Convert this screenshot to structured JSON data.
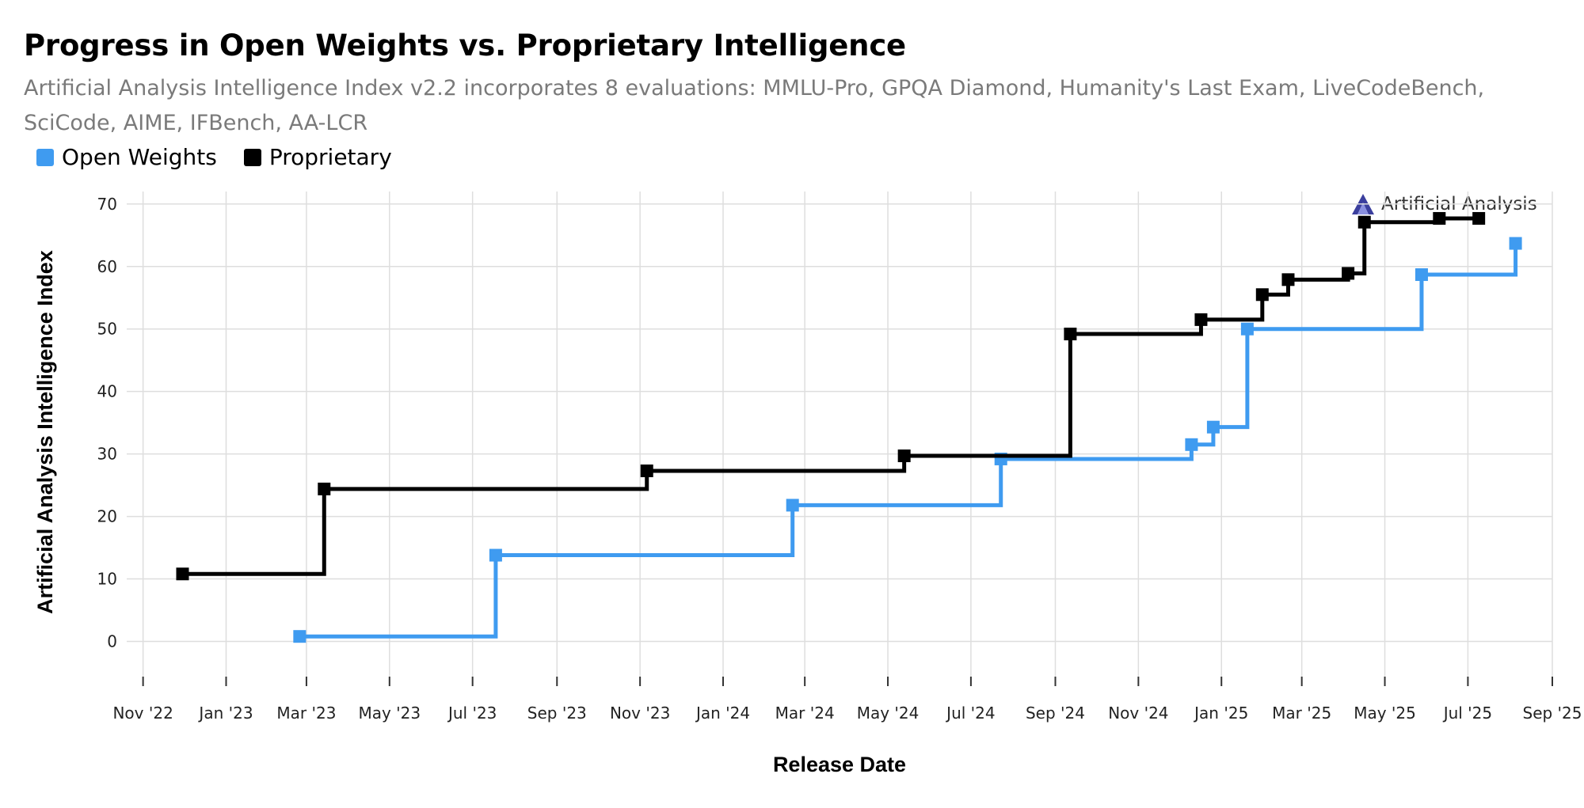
{
  "header": {
    "title": "Progress in Open Weights vs. Proprietary Intelligence",
    "subtitle": "Artificial Analysis Intelligence Index v2.2 incorporates 8 evaluations: MMLU-Pro, GPQA Diamond, Humanity's Last Exam, LiveCodeBench, SciCode, AIME, IFBench, AA-LCR"
  },
  "brand": {
    "name": "Artificial Analysis",
    "icon": "artificial-analysis-logo-icon"
  },
  "colors": {
    "open_weights": "#3f9bf0",
    "proprietary": "#000000",
    "grid": "#dedede"
  },
  "chart_data": {
    "type": "line",
    "step": "post",
    "title": "Progress in Open Weights vs. Proprietary Intelligence",
    "xlabel": "Release Date",
    "ylabel": "Artificial Analysis Intelligence Index",
    "x_type": "date",
    "xlim": [
      "2022-10-20",
      "2025-09-01"
    ],
    "ylim": [
      -5,
      72
    ],
    "y_ticks": [
      0,
      10,
      20,
      30,
      40,
      50,
      60,
      70
    ],
    "x_ticks": [
      {
        "date": "2022-11-01",
        "label": "Nov '22"
      },
      {
        "date": "2023-01-01",
        "label": "Jan '23"
      },
      {
        "date": "2023-03-01",
        "label": "Mar '23"
      },
      {
        "date": "2023-05-01",
        "label": "May '23"
      },
      {
        "date": "2023-07-01",
        "label": "Jul '23"
      },
      {
        "date": "2023-09-01",
        "label": "Sep '23"
      },
      {
        "date": "2023-11-01",
        "label": "Nov '23"
      },
      {
        "date": "2024-01-01",
        "label": "Jan '24"
      },
      {
        "date": "2024-03-01",
        "label": "Mar '24"
      },
      {
        "date": "2024-05-01",
        "label": "May '24"
      },
      {
        "date": "2024-07-01",
        "label": "Jul '24"
      },
      {
        "date": "2024-09-01",
        "label": "Sep '24"
      },
      {
        "date": "2024-11-01",
        "label": "Nov '24"
      },
      {
        "date": "2025-01-01",
        "label": "Jan '25"
      },
      {
        "date": "2025-03-01",
        "label": "Mar '25"
      },
      {
        "date": "2025-05-01",
        "label": "May '25"
      },
      {
        "date": "2025-07-01",
        "label": "Jul '25"
      },
      {
        "date": "2025-09-01",
        "label": "Sep '25"
      }
    ],
    "grid": true,
    "legend_position": "top-left",
    "series": [
      {
        "name": "Open Weights",
        "color": "#3f9bf0",
        "points": [
          {
            "x": "2023-02-24",
            "y": 0.8
          },
          {
            "x": "2023-07-18",
            "y": 13.8
          },
          {
            "x": "2024-02-21",
            "y": 21.8
          },
          {
            "x": "2024-07-23",
            "y": 29.2
          },
          {
            "x": "2024-12-10",
            "y": 31.5
          },
          {
            "x": "2024-12-26",
            "y": 34.3
          },
          {
            "x": "2025-01-20",
            "y": 50.0
          },
          {
            "x": "2025-05-28",
            "y": 58.7
          },
          {
            "x": "2025-08-05",
            "y": 63.7
          }
        ]
      },
      {
        "name": "Proprietary",
        "color": "#000000",
        "points": [
          {
            "x": "2022-11-30",
            "y": 10.8
          },
          {
            "x": "2023-03-14",
            "y": 24.4
          },
          {
            "x": "2023-11-06",
            "y": 27.3
          },
          {
            "x": "2024-05-13",
            "y": 29.7
          },
          {
            "x": "2024-09-12",
            "y": 49.2
          },
          {
            "x": "2024-12-17",
            "y": 51.5
          },
          {
            "x": "2025-01-31",
            "y": 55.5
          },
          {
            "x": "2025-02-19",
            "y": 57.9
          },
          {
            "x": "2025-04-04",
            "y": 58.9
          },
          {
            "x": "2025-04-16",
            "y": 67.1
          },
          {
            "x": "2025-06-10",
            "y": 67.7
          },
          {
            "x": "2025-07-09",
            "y": 67.7
          }
        ]
      }
    ]
  }
}
